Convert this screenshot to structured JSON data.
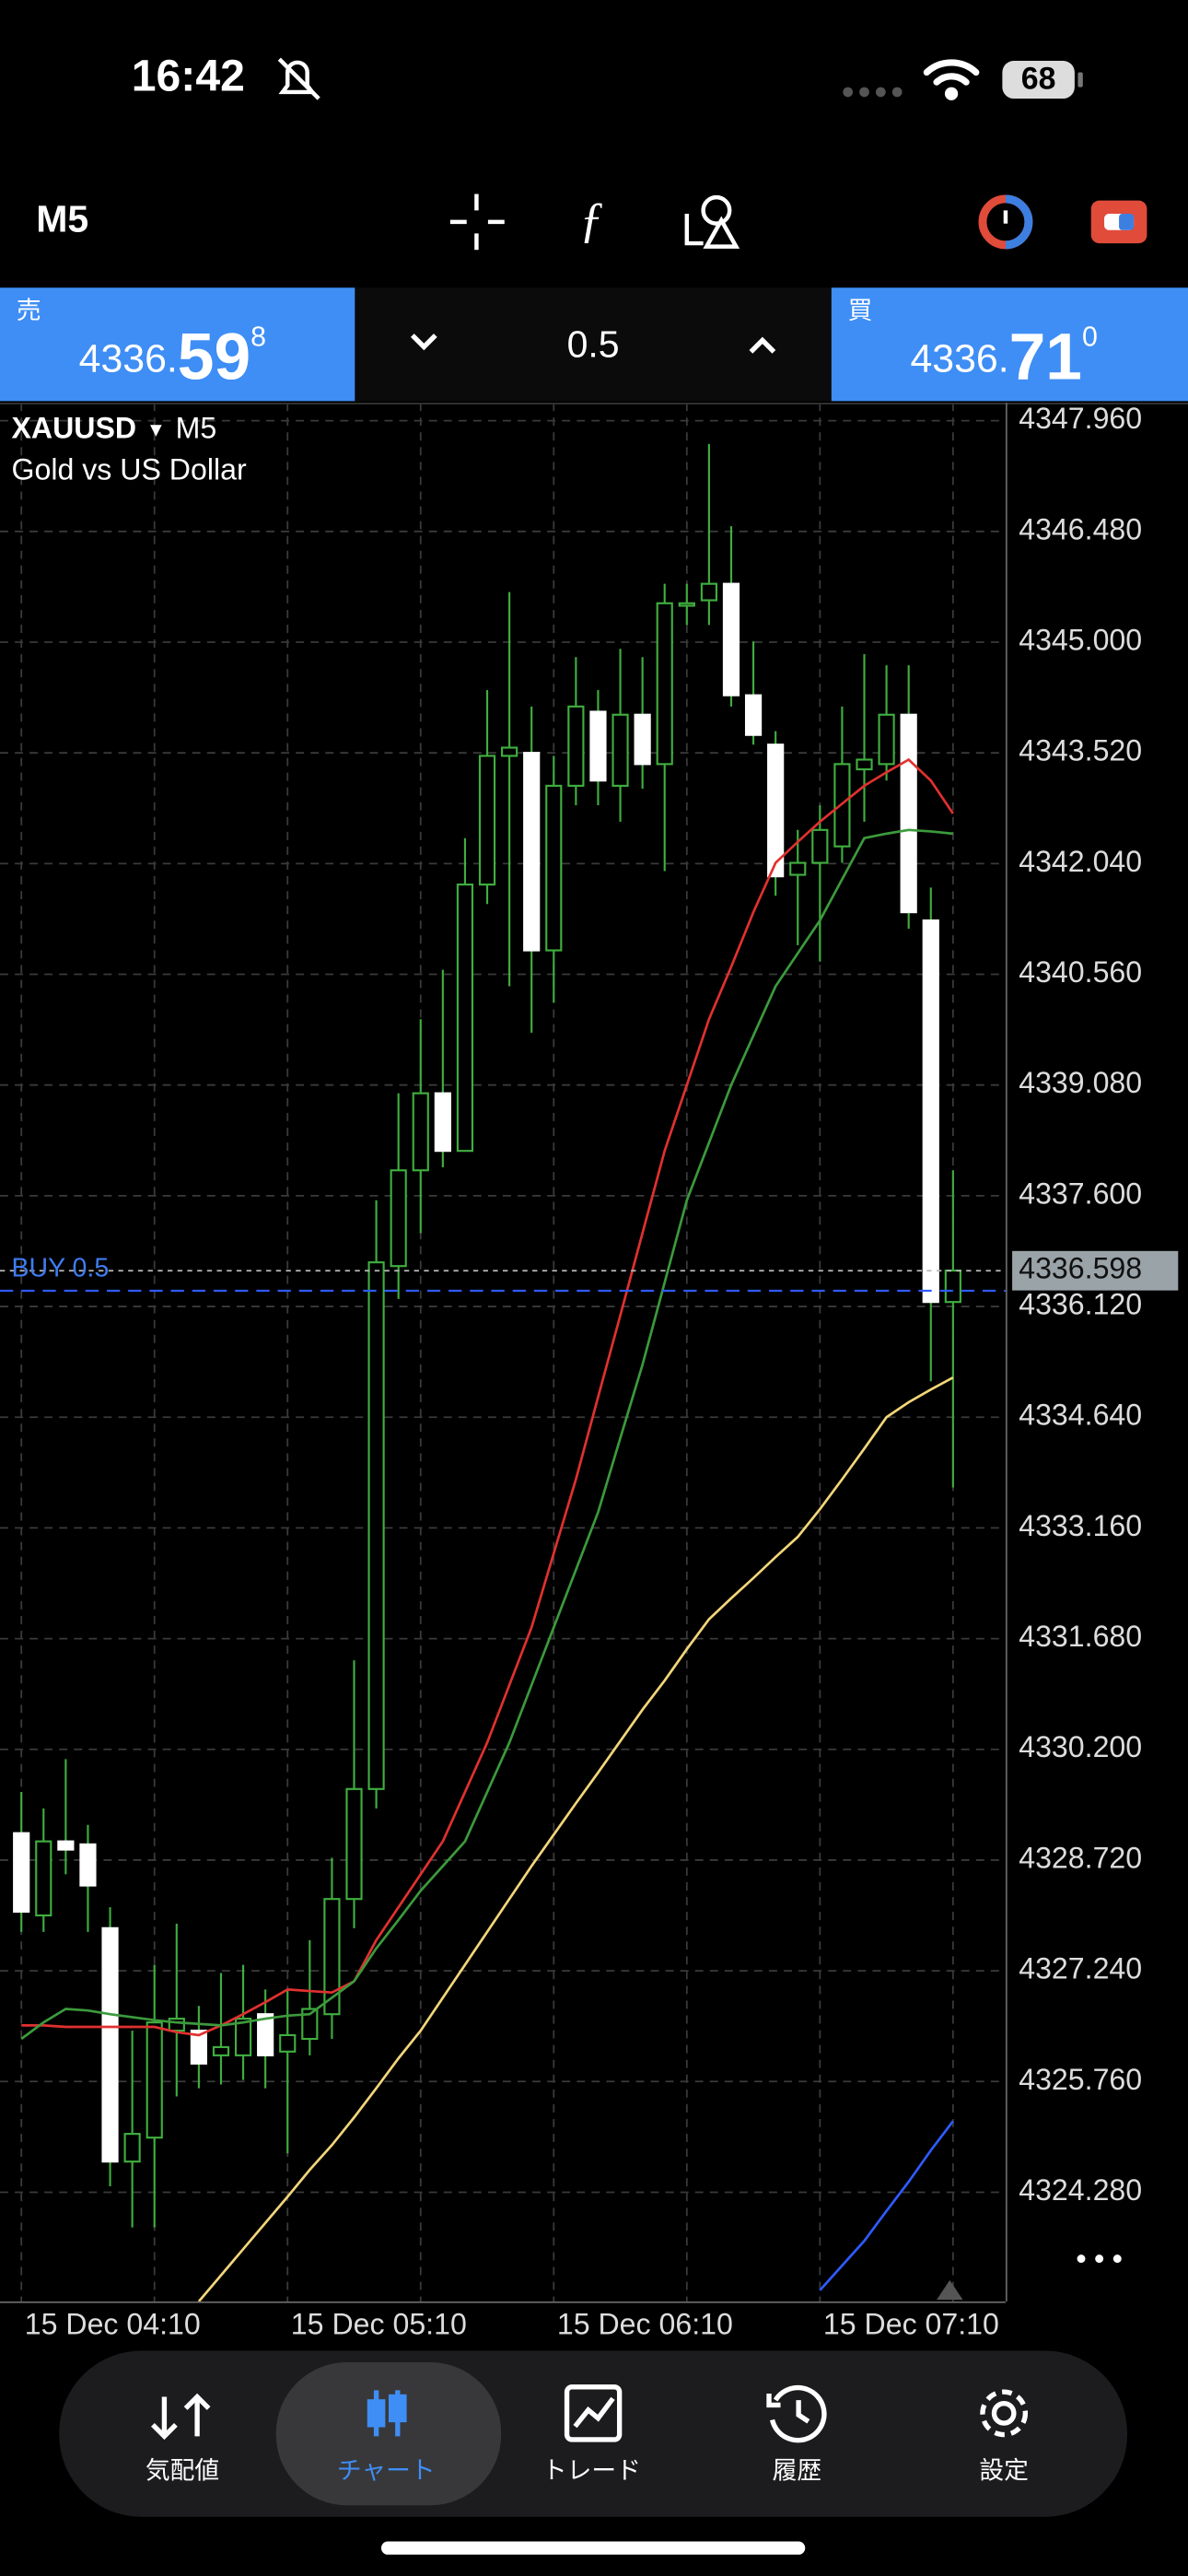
{
  "status_bar": {
    "time": "16:42",
    "battery": "68"
  },
  "toolbar": {
    "timeframe": "M5"
  },
  "quote": {
    "sell": {
      "label": "売",
      "price_main": "4336.",
      "price_big": "59",
      "price_sup": "8"
    },
    "volume": "0.5",
    "buy": {
      "label": "買",
      "price_main": "4336.",
      "price_big": "71",
      "price_sup": "0"
    }
  },
  "chart_data": {
    "type": "candlestick",
    "symbol": "XAUUSD",
    "timeframe": "M5",
    "description": "Gold vs US Dollar",
    "categories": [
      "15 Dec 04:10",
      null,
      null,
      null,
      null,
      null,
      null,
      null,
      null,
      null,
      null,
      null,
      "15 Dec 05:10",
      null,
      null,
      null,
      null,
      null,
      null,
      null,
      null,
      null,
      null,
      null,
      "15 Dec 06:10",
      null,
      null,
      null,
      null,
      null,
      null,
      null,
      null,
      null,
      null,
      null,
      "15 Dec 07:10",
      null,
      null,
      null,
      null,
      null,
      null
    ],
    "open": [
      4329.08,
      4327.98,
      4328.97,
      4328.93,
      4327.81,
      4324.69,
      4325.01,
      4326.44,
      4326.44,
      4326.11,
      4326.11,
      4326.66,
      4326.16,
      4326.33,
      4326.66,
      4328.2,
      4329.67,
      4336.66,
      4337.94,
      4338.97,
      4338.2,
      4341.76,
      4343.48,
      4343.52,
      4340.88,
      4343.08,
      4344.07,
      4343.08,
      4344.03,
      4343.37,
      4345.5,
      4345.56,
      4345.78,
      4344.29,
      4343.63,
      4341.89,
      4342.05,
      4342.27,
      4343.3,
      4343.37,
      4344.03,
      4341.28,
      4336.18
    ],
    "high": [
      4329.63,
      4329.41,
      4330.07,
      4329.19,
      4328.09,
      4326.44,
      4327.32,
      4327.87,
      4326.77,
      4327.21,
      4327.32,
      4326.99,
      4326.99,
      4327.65,
      4328.75,
      4331.39,
      4337.54,
      4338.97,
      4339.96,
      4340.62,
      4342.38,
      4344.36,
      4345.67,
      4344.14,
      4343.48,
      4344.8,
      4344.36,
      4344.91,
      4344.8,
      4345.78,
      4345.78,
      4347.65,
      4346.55,
      4345.01,
      4343.81,
      4342.49,
      4342.82,
      4344.14,
      4344.84,
      4344.69,
      4344.69,
      4341.72,
      4337.94
    ],
    "low": [
      4327.76,
      4327.76,
      4328.53,
      4327.76,
      4324.36,
      4323.81,
      4323.81,
      4325.56,
      4325.67,
      4325.72,
      4325.78,
      4325.67,
      4324.8,
      4326.11,
      4326.33,
      4327.81,
      4329.41,
      4336.22,
      4337.1,
      4337.98,
      4338.2,
      4341.5,
      4340.4,
      4339.78,
      4340.18,
      4342.82,
      4342.82,
      4342.6,
      4343.04,
      4341.94,
      4345.23,
      4345.23,
      4344.14,
      4343.63,
      4341.61,
      4340.95,
      4340.73,
      4342.05,
      4342.6,
      4343.15,
      4341.17,
      4335.12,
      4333.7
    ],
    "close": [
      4328.03,
      4328.97,
      4328.86,
      4328.38,
      4324.69,
      4325.06,
      4326.55,
      4326.6,
      4326.0,
      4326.22,
      4326.6,
      4326.11,
      4326.38,
      4326.73,
      4328.2,
      4329.67,
      4336.71,
      4337.94,
      4338.97,
      4338.2,
      4341.76,
      4343.48,
      4343.59,
      4340.88,
      4343.08,
      4344.14,
      4343.15,
      4344.03,
      4343.37,
      4345.52,
      4345.52,
      4345.78,
      4344.29,
      4343.76,
      4341.87,
      4342.05,
      4342.49,
      4343.37,
      4343.43,
      4344.03,
      4341.39,
      4336.18,
      4336.6
    ],
    "up_color": "#3fae3f",
    "down_color": "#ffffff",
    "series": [
      {
        "color": "#e0312f",
        "values": [
          4326.51,
          4326.51,
          4326.49,
          4326.49,
          4326.49,
          4326.49,
          4326.49,
          4326.42,
          4326.38,
          4326.51,
          4326.66,
          4326.82,
          4326.99,
          4326.97,
          4326.95,
          4327.1,
          4327.65,
          4328.09,
          4328.53,
          4328.97,
          4329.63,
          4330.29,
          4331.06,
          4331.83,
          4332.82,
          4333.81,
          4334.91,
          4336.0,
          4337.1,
          4338.2,
          4339.08,
          4339.96,
          4340.66,
          4341.39,
          4342.05,
          4342.33,
          4342.6,
          4342.84,
          4343.08,
          4343.26,
          4343.43,
          4343.15,
          4342.71
        ]
      },
      {
        "color": "#3c9a3c",
        "values": [
          4326.33,
          4326.55,
          4326.73,
          4326.71,
          4326.66,
          4326.62,
          4326.58,
          4326.55,
          4326.53,
          4326.51,
          4326.55,
          4326.6,
          4326.64,
          4326.66,
          4326.88,
          4327.1,
          4327.54,
          4327.92,
          4328.31,
          4328.64,
          4328.97,
          4329.63,
          4330.29,
          4331.06,
          4331.83,
          4332.6,
          4333.37,
          4334.36,
          4335.34,
          4336.44,
          4337.54,
          4338.31,
          4339.08,
          4339.74,
          4340.4,
          4340.84,
          4341.28,
          4341.83,
          4342.38,
          4342.44,
          4342.49,
          4342.47,
          4342.44
        ]
      },
      {
        "color": "#f3d67a",
        "values": [
          null,
          null,
          null,
          null,
          null,
          null,
          null,
          null,
          4322.82,
          4323.17,
          4323.52,
          4323.87,
          4324.22,
          4324.58,
          4324.91,
          4325.28,
          4325.67,
          4326.07,
          4326.44,
          4326.88,
          4327.32,
          4327.76,
          4328.2,
          4328.64,
          4329.06,
          4329.48,
          4329.89,
          4330.31,
          4330.73,
          4331.12,
          4331.54,
          4331.94,
          4332.22,
          4332.49,
          4332.77,
          4333.04,
          4333.41,
          4333.81,
          4334.22,
          4334.64,
          4334.84,
          4335.01,
          4335.17
        ]
      },
      {
        "color": "#2f5bff",
        "values": [
          null,
          null,
          null,
          null,
          null,
          null,
          null,
          null,
          null,
          null,
          null,
          null,
          null,
          null,
          null,
          null,
          null,
          null,
          null,
          null,
          null,
          null,
          null,
          null,
          null,
          null,
          null,
          null,
          null,
          null,
          null,
          null,
          null,
          null,
          null,
          null,
          4322.97,
          4323.3,
          4323.63,
          4324.03,
          4324.42,
          4324.84,
          4325.23
        ]
      }
    ],
    "ylim": [
      4322.82,
      4348.2
    ],
    "yticks": [
      {
        "value": 4347.96,
        "label": "4347.960"
      },
      {
        "value": 4346.48,
        "label": "4346.480"
      },
      {
        "value": 4345.0,
        "label": "4345.000"
      },
      {
        "value": 4343.52,
        "label": "4343.520"
      },
      {
        "value": 4342.04,
        "label": "4342.040"
      },
      {
        "value": 4340.56,
        "label": "4340.560"
      },
      {
        "value": 4339.08,
        "label": "4339.080"
      },
      {
        "value": 4337.6,
        "label": "4337.600"
      },
      {
        "value": 4336.12,
        "label": "4336.120"
      },
      {
        "value": 4334.64,
        "label": "4334.640"
      },
      {
        "value": 4333.16,
        "label": "4333.160"
      },
      {
        "value": 4331.68,
        "label": "4331.680"
      },
      {
        "value": 4330.2,
        "label": "4330.200"
      },
      {
        "value": 4328.72,
        "label": "4328.720"
      },
      {
        "value": 4327.24,
        "label": "4327.240"
      },
      {
        "value": 4325.76,
        "label": "4325.760"
      },
      {
        "value": 4324.28,
        "label": "4324.280"
      }
    ],
    "grid": true,
    "current_price": 4336.598,
    "position": {
      "label": "BUY 0.5",
      "value": 4336.33
    }
  },
  "nav": [
    "気配値",
    "チャート",
    "トレード",
    "履歴",
    "設定"
  ]
}
